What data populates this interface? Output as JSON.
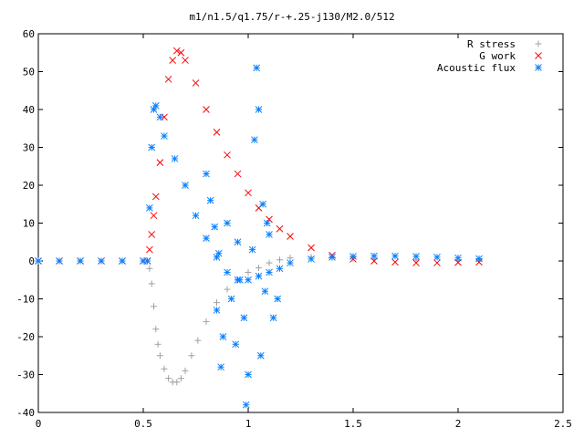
{
  "chart_data": {
    "type": "scatter",
    "title": "m1/n1.5/q1.75/r-+.25-j130/M2.0/512",
    "xlabel": "",
    "ylabel": "",
    "xlim": [
      0,
      2.5
    ],
    "ylim": [
      -40,
      60
    ],
    "x_ticks": [
      "0",
      "0.5",
      "1",
      "1.5",
      "2",
      "2.5"
    ],
    "y_ticks": [
      "-40",
      "-30",
      "-20",
      "-10",
      "0",
      "10",
      "20",
      "30",
      "40",
      "50",
      "60"
    ],
    "grid": false,
    "legend": "top-right",
    "series": [
      {
        "name": "R stress",
        "marker": "plus",
        "color": "#a0a0a0",
        "points": [
          [
            0.0,
            0
          ],
          [
            0.1,
            0
          ],
          [
            0.2,
            0
          ],
          [
            0.3,
            0
          ],
          [
            0.4,
            0
          ],
          [
            0.5,
            0
          ],
          [
            0.52,
            0
          ],
          [
            0.53,
            -2
          ],
          [
            0.54,
            -6
          ],
          [
            0.55,
            -12
          ],
          [
            0.56,
            -18
          ],
          [
            0.57,
            -22
          ],
          [
            0.58,
            -25
          ],
          [
            0.6,
            -28.5
          ],
          [
            0.62,
            -31
          ],
          [
            0.64,
            -32
          ],
          [
            0.66,
            -32
          ],
          [
            0.68,
            -31
          ],
          [
            0.7,
            -29
          ],
          [
            0.73,
            -25
          ],
          [
            0.76,
            -21
          ],
          [
            0.8,
            -16
          ],
          [
            0.85,
            -11
          ],
          [
            0.9,
            -7.5
          ],
          [
            0.95,
            -5
          ],
          [
            1.0,
            -3
          ],
          [
            1.05,
            -1.8
          ],
          [
            1.1,
            -0.5
          ],
          [
            1.15,
            0.3
          ],
          [
            1.2,
            0.8
          ],
          [
            1.3,
            1.0
          ],
          [
            1.4,
            0.9
          ],
          [
            1.5,
            0.7
          ],
          [
            1.6,
            0.5
          ],
          [
            1.8,
            0.3
          ],
          [
            2.0,
            0.2
          ],
          [
            2.1,
            0.2
          ]
        ]
      },
      {
        "name": "G work",
        "marker": "cross",
        "color": "#ff0000",
        "points": [
          [
            0.0,
            0
          ],
          [
            0.1,
            0
          ],
          [
            0.2,
            0
          ],
          [
            0.3,
            0
          ],
          [
            0.4,
            0
          ],
          [
            0.5,
            0
          ],
          [
            0.52,
            0
          ],
          [
            0.53,
            3
          ],
          [
            0.54,
            7
          ],
          [
            0.55,
            12
          ],
          [
            0.56,
            17
          ],
          [
            0.58,
            26
          ],
          [
            0.6,
            38
          ],
          [
            0.62,
            48
          ],
          [
            0.64,
            53
          ],
          [
            0.66,
            55.5
          ],
          [
            0.68,
            55
          ],
          [
            0.7,
            53
          ],
          [
            0.75,
            47
          ],
          [
            0.8,
            40
          ],
          [
            0.85,
            34
          ],
          [
            0.9,
            28
          ],
          [
            0.95,
            23
          ],
          [
            1.0,
            18
          ],
          [
            1.05,
            14
          ],
          [
            1.1,
            11
          ],
          [
            1.15,
            8.5
          ],
          [
            1.2,
            6.5
          ],
          [
            1.3,
            3.5
          ],
          [
            1.4,
            1.5
          ],
          [
            1.5,
            0.5
          ],
          [
            1.6,
            0
          ],
          [
            1.7,
            -0.3
          ],
          [
            1.8,
            -0.5
          ],
          [
            1.9,
            -0.5
          ],
          [
            2.0,
            -0.4
          ],
          [
            2.1,
            -0.3
          ]
        ]
      },
      {
        "name": "Acoustic flux",
        "marker": "star",
        "color": "#0a80ff",
        "points": [
          [
            0.0,
            0
          ],
          [
            0.1,
            0
          ],
          [
            0.2,
            0
          ],
          [
            0.3,
            0
          ],
          [
            0.4,
            0
          ],
          [
            0.5,
            0
          ],
          [
            0.52,
            0
          ],
          [
            0.53,
            14
          ],
          [
            0.54,
            30
          ],
          [
            0.55,
            40
          ],
          [
            0.56,
            41
          ],
          [
            0.58,
            38
          ],
          [
            0.6,
            33
          ],
          [
            0.65,
            27
          ],
          [
            0.7,
            20
          ],
          [
            0.75,
            12
          ],
          [
            0.8,
            6
          ],
          [
            0.85,
            1
          ],
          [
            0.9,
            -3
          ],
          [
            0.95,
            -5
          ],
          [
            1.0,
            -5
          ],
          [
            1.05,
            -4
          ],
          [
            1.1,
            -3
          ],
          [
            1.15,
            -2
          ],
          [
            1.2,
            -0.5
          ],
          [
            1.3,
            0.5
          ],
          [
            1.4,
            1
          ],
          [
            1.5,
            1.2
          ],
          [
            1.6,
            1.3
          ],
          [
            1.7,
            1.3
          ],
          [
            1.8,
            1.2
          ],
          [
            1.9,
            1.0
          ],
          [
            2.0,
            0.8
          ],
          [
            2.1,
            0.6
          ],
          [
            0.8,
            23
          ],
          [
            0.82,
            16
          ],
          [
            0.84,
            9
          ],
          [
            0.85,
            -13
          ],
          [
            0.86,
            2
          ],
          [
            0.87,
            -28
          ],
          [
            0.88,
            -20
          ],
          [
            0.9,
            10
          ],
          [
            0.92,
            -10
          ],
          [
            0.94,
            -22
          ],
          [
            0.95,
            5
          ],
          [
            0.96,
            -5
          ],
          [
            0.98,
            -15
          ],
          [
            0.99,
            -38
          ],
          [
            1.0,
            -30
          ],
          [
            1.02,
            3
          ],
          [
            1.03,
            32
          ],
          [
            1.04,
            51
          ],
          [
            1.05,
            40
          ],
          [
            1.06,
            -25
          ],
          [
            1.07,
            15
          ],
          [
            1.08,
            -8
          ],
          [
            1.09,
            10
          ],
          [
            1.1,
            7
          ],
          [
            1.12,
            -15
          ],
          [
            1.14,
            -10
          ]
        ]
      }
    ]
  }
}
